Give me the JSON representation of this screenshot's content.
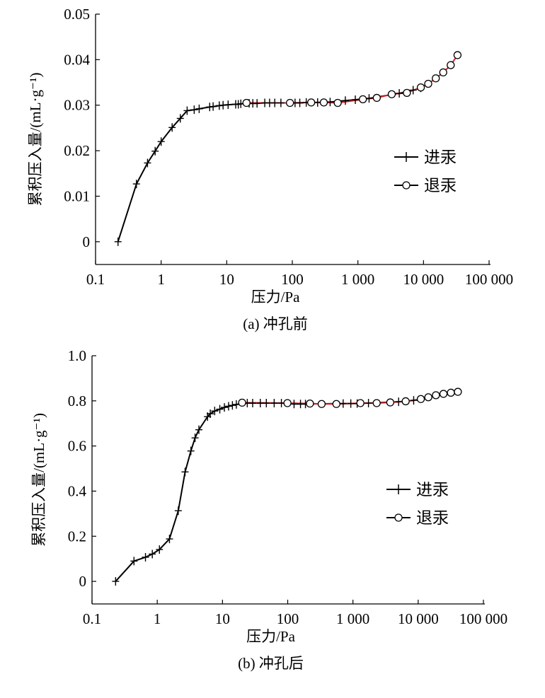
{
  "chart_data": [
    {
      "type": "line",
      "caption": "(a) 冲孔前",
      "xlabel": "压力/Pa",
      "ylabel": "累积压入量/(mL·g⁻¹)",
      "xscale": "log",
      "xlim": [
        0.1,
        100000
      ],
      "ylim": [
        -0.005,
        0.05
      ],
      "xticks": [
        0.1,
        1,
        10,
        100,
        1000,
        10000,
        100000
      ],
      "xtick_labels": [
        "0.1",
        "1",
        "10",
        "100",
        "1 000",
        "10 000",
        "100 000"
      ],
      "yticks": [
        0,
        0.01,
        0.02,
        0.03,
        0.04,
        0.05
      ],
      "ytick_labels": [
        "0",
        "0.01",
        "0.02",
        "0.03",
        "0.04",
        "0.05"
      ],
      "legend_position": "right",
      "series": [
        {
          "name": "进汞",
          "marker": "plus",
          "color": "#000000",
          "x": [
            0.22,
            0.42,
            0.62,
            0.81,
            1.0,
            1.47,
            1.96,
            2.49,
            3.19,
            3.8,
            5.5,
            6.2,
            7.7,
            8.8,
            10.5,
            13.7,
            15,
            16.4,
            22,
            25,
            29,
            38,
            45,
            54,
            67,
            110,
            130,
            163,
            243,
            377,
            643,
            913,
            1480,
            4270,
            6950,
            9100
          ],
          "y": [
            0,
            0.0127,
            0.0173,
            0.0199,
            0.022,
            0.0251,
            0.0271,
            0.0288,
            0.029,
            0.0292,
            0.0296,
            0.0297,
            0.0299,
            0.03,
            0.0301,
            0.0302,
            0.0302,
            0.0303,
            0.0304,
            0.0304,
            0.0304,
            0.0305,
            0.0305,
            0.0305,
            0.0305,
            0.0305,
            0.0305,
            0.0306,
            0.0306,
            0.0307,
            0.031,
            0.0312,
            0.0315,
            0.0326,
            0.0333,
            0.0338
          ]
        },
        {
          "name": "退汞",
          "marker": "circle",
          "color": "#000000",
          "line_color": "#d42020",
          "x": [
            20,
            92,
            194,
            302,
            492,
            1190,
            1940,
            3280,
            5580,
            9100,
            11800,
            15400,
            20000,
            26000,
            33000
          ],
          "y": [
            0.0305,
            0.0305,
            0.0306,
            0.0306,
            0.0305,
            0.0313,
            0.0316,
            0.0324,
            0.0327,
            0.0339,
            0.0347,
            0.0359,
            0.0372,
            0.0388,
            0.041
          ]
        }
      ]
    },
    {
      "type": "line",
      "caption": "(b) 冲孔后",
      "xlabel": "压力/Pa",
      "ylabel": "累积压入量/(mL·g⁻¹)",
      "xscale": "log",
      "xlim": [
        0.1,
        100000
      ],
      "ylim": [
        -0.1,
        1.0
      ],
      "xticks": [
        0.1,
        1,
        10,
        100,
        1000,
        10000,
        100000
      ],
      "xtick_labels": [
        "0.1",
        "1",
        "10",
        "100",
        "1 000",
        "10 000",
        "100 000"
      ],
      "yticks": [
        0,
        0.2,
        0.4,
        0.6,
        0.8,
        1.0
      ],
      "ytick_labels": [
        "0",
        "0.2",
        "0.4",
        "0.6",
        "0.8",
        "1.0"
      ],
      "legend_position": "right",
      "series": [
        {
          "name": "进汞",
          "marker": "plus",
          "color": "#000000",
          "x": [
            0.23,
            0.44,
            0.66,
            0.84,
            1.08,
            1.54,
            2.1,
            2.67,
            3.28,
            3.8,
            4.35,
            5.9,
            6.5,
            7.6,
            9.1,
            10.7,
            12.4,
            14.2,
            16.3,
            24,
            29,
            38,
            47,
            62,
            80,
            125,
            157,
            187,
            708,
            927,
            1160,
            1730,
            5010,
            8530
          ],
          "y": [
            0,
            0.09,
            0.107,
            0.121,
            0.141,
            0.188,
            0.313,
            0.485,
            0.578,
            0.636,
            0.672,
            0.73,
            0.743,
            0.755,
            0.763,
            0.771,
            0.776,
            0.78,
            0.784,
            0.79,
            0.79,
            0.79,
            0.79,
            0.79,
            0.79,
            0.786,
            0.786,
            0.786,
            0.788,
            0.788,
            0.788,
            0.79,
            0.796,
            0.802
          ]
        },
        {
          "name": "退汞",
          "marker": "circle",
          "color": "#000000",
          "line_color": "#d42020",
          "x": [
            20,
            99,
            219,
            331,
            557,
            1300,
            2310,
            3730,
            6430,
            10970,
            14300,
            18700,
            24400,
            31700,
            40600
          ],
          "y": [
            0.792,
            0.79,
            0.788,
            0.786,
            0.786,
            0.79,
            0.79,
            0.793,
            0.798,
            0.808,
            0.816,
            0.825,
            0.831,
            0.836,
            0.84
          ]
        }
      ]
    }
  ]
}
